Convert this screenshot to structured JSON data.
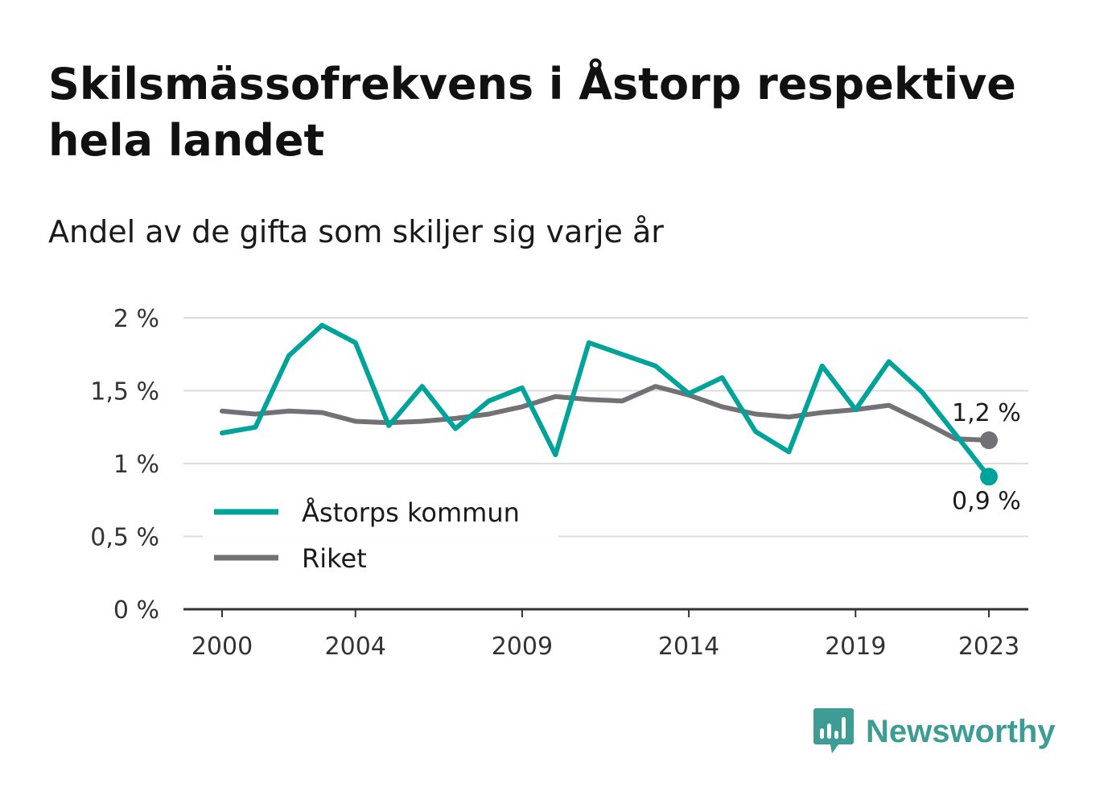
{
  "title": "Skilsmässofrekvens i Åstorp respektive hela landet",
  "subtitle": "Andel av de gifta som skiljer sig varje år",
  "brand": {
    "name": "Newsworthy",
    "icon": "bar-chart-speech-icon",
    "color": "#3d9c93"
  },
  "chart_data": {
    "type": "line",
    "title": "Skilsmässofrekvens i Åstorp respektive hela landet",
    "subtitle": "Andel av de gifta som skiljer sig varje år",
    "xlabel": "",
    "ylabel": "",
    "x": [
      2000,
      2001,
      2002,
      2003,
      2004,
      2005,
      2006,
      2007,
      2008,
      2009,
      2010,
      2011,
      2012,
      2013,
      2014,
      2015,
      2016,
      2017,
      2018,
      2019,
      2020,
      2021,
      2022,
      2023
    ],
    "x_ticks": [
      2000,
      2004,
      2009,
      2014,
      2019,
      2023
    ],
    "x_tick_labels": [
      "2000",
      "2004",
      "2009",
      "2014",
      "2019",
      "2023"
    ],
    "ylim": [
      0,
      2
    ],
    "y_ticks": [
      0,
      0.5,
      1,
      1.5,
      2
    ],
    "y_tick_labels": [
      "0 %",
      "0,5 %",
      "1 %",
      "1,5 %",
      "2 %"
    ],
    "grid": true,
    "legend_position": "bottom-left",
    "series": [
      {
        "name": "Åstorps kommun",
        "color": "#00a39a",
        "values": [
          1.21,
          1.25,
          1.74,
          1.95,
          1.83,
          1.26,
          1.53,
          1.24,
          1.43,
          1.52,
          1.06,
          1.83,
          1.75,
          1.67,
          1.48,
          1.59,
          1.22,
          1.08,
          1.67,
          1.37,
          1.7,
          1.49,
          1.2,
          0.91
        ],
        "end_label": "0,9 %"
      },
      {
        "name": "Riket",
        "color": "#727176",
        "values": [
          1.36,
          1.34,
          1.36,
          1.35,
          1.29,
          1.28,
          1.29,
          1.31,
          1.34,
          1.39,
          1.46,
          1.44,
          1.43,
          1.53,
          1.47,
          1.39,
          1.34,
          1.32,
          1.35,
          1.37,
          1.4,
          1.29,
          1.17,
          1.16
        ],
        "end_label": "1,2 %"
      }
    ]
  }
}
